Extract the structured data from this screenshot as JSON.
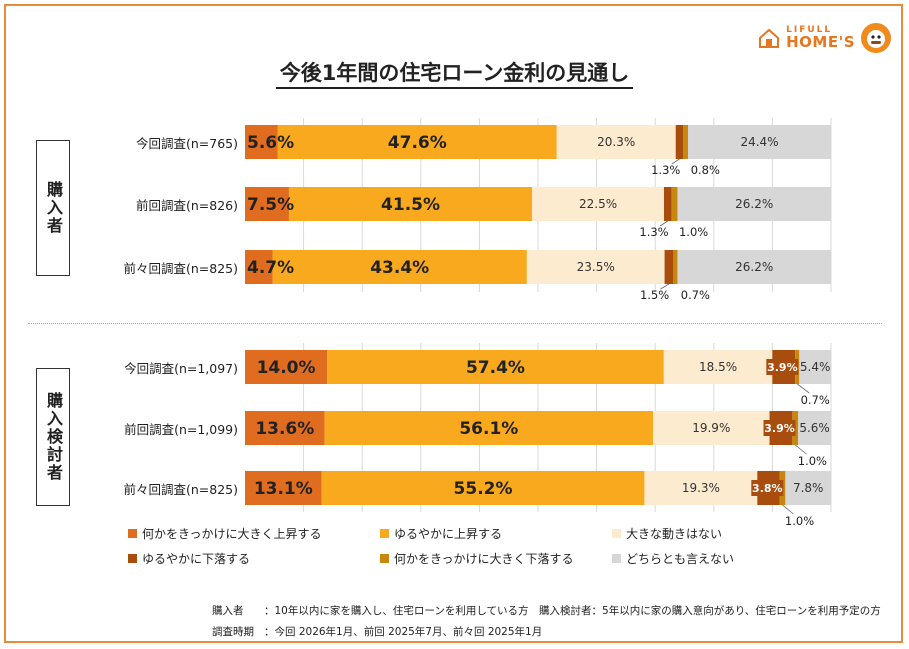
{
  "title": "今後1年間の住宅ローン金利の見通し",
  "logo": {
    "top": "LIFULL",
    "bottom": "HOME'S",
    "icon": "house-icon",
    "mascot": "mascot-icon"
  },
  "groups": [
    {
      "label": "購入者"
    },
    {
      "label": "購入検討者"
    }
  ],
  "colors": [
    "#e06d1f",
    "#f8a91d",
    "#fdebcf",
    "#a84d0e",
    "#c8870e",
    "#d7d7d7"
  ],
  "chart_data": {
    "type": "bar",
    "orientation": "horizontal-stacked-100",
    "series_names": [
      "何かをきっかけに大きく上昇する",
      "ゆるやかに上昇する",
      "大きな動きはない",
      "ゆるやかに下落する",
      "何かをきっかけに大きく下落する",
      "どちらとも言えない"
    ],
    "rows": [
      {
        "group": "購入者",
        "label": "今回調査(n=765)",
        "values": [
          5.6,
          47.6,
          20.3,
          1.3,
          0.8,
          24.4
        ],
        "value_labels": [
          "5.6%",
          "47.6%",
          "20.3%",
          "1.3%",
          "0.8%",
          "24.4%"
        ]
      },
      {
        "group": "購入者",
        "label": "前回調査(n=826)",
        "values": [
          7.5,
          41.5,
          22.5,
          1.3,
          1.0,
          26.2
        ],
        "value_labels": [
          "7.5%",
          "41.5%",
          "22.5%",
          "1.3%",
          "1.0%",
          "26.2%"
        ]
      },
      {
        "group": "購入者",
        "label": "前々回調査(n=825)",
        "values": [
          4.7,
          43.4,
          23.5,
          1.5,
          0.7,
          26.2
        ],
        "value_labels": [
          "4.7%",
          "43.4%",
          "23.5%",
          "1.5%",
          "0.7%",
          "26.2%"
        ]
      },
      {
        "group": "購入検討者",
        "label": "今回調査(n=1,097)",
        "values": [
          14.0,
          57.4,
          18.5,
          3.9,
          0.7,
          5.4
        ],
        "value_labels": [
          "14.0%",
          "57.4%",
          "18.5%",
          "3.9%",
          "0.7%",
          "5.4%"
        ]
      },
      {
        "group": "購入検討者",
        "label": "前回調査(n=1,099)",
        "values": [
          13.6,
          56.1,
          19.9,
          3.9,
          1.0,
          5.6
        ],
        "value_labels": [
          "13.6%",
          "56.1%",
          "19.9%",
          "3.9%",
          "1.0%",
          "5.6%"
        ]
      },
      {
        "group": "購入検討者",
        "label": "前々回調査(n=825)",
        "values": [
          13.1,
          55.2,
          19.3,
          3.8,
          1.0,
          7.8
        ],
        "value_labels": [
          "13.1%",
          "55.2%",
          "19.3%",
          "3.8%",
          "1.0%",
          "7.8%"
        ]
      }
    ],
    "xlim": [
      0,
      100
    ],
    "grid": true,
    "legend_position": "bottom"
  },
  "notes": [
    {
      "key": "購入者",
      "text": "：10年以内に家を購入し、住宅ローンを利用している方　購入検討者：5年以内に家の購入意向があり、住宅ローンを利用予定の方"
    },
    {
      "key": "調査時期",
      "text": "：今回 2026年1月、前回 2025年7月、前々回 2025年1月"
    }
  ]
}
